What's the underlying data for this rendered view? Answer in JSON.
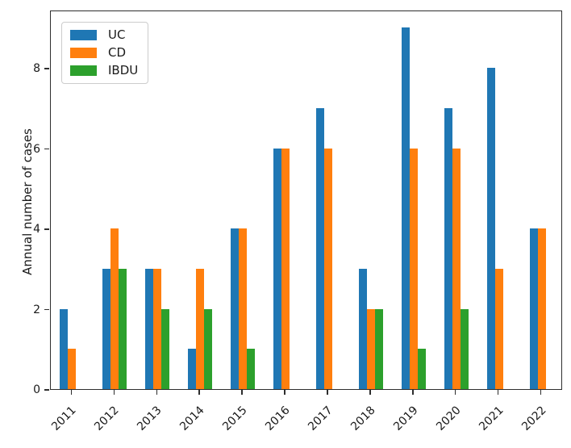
{
  "chart_data": {
    "type": "bar",
    "title": "",
    "xlabel": "",
    "ylabel": "Annual number of cases",
    "categories": [
      "2011",
      "2012",
      "2013",
      "2014",
      "2015",
      "2016",
      "2017",
      "2018",
      "2019",
      "2020",
      "2021",
      "2022"
    ],
    "series": [
      {
        "name": "UC",
        "color": "#1f77b4",
        "values": [
          2,
          3,
          3,
          1,
          4,
          6,
          7,
          3,
          9,
          7,
          8,
          4
        ]
      },
      {
        "name": "CD",
        "color": "#ff7f0e",
        "values": [
          1,
          4,
          3,
          3,
          4,
          6,
          6,
          2,
          6,
          6,
          3,
          4
        ]
      },
      {
        "name": "IBDU",
        "color": "#2ca02c",
        "values": [
          0,
          3,
          2,
          2,
          1,
          0,
          0,
          2,
          1,
          2,
          0,
          0
        ]
      }
    ],
    "yticks": [
      0,
      2,
      4,
      6,
      8
    ],
    "ylim": [
      0,
      9.45
    ],
    "grid": false,
    "legend_position": "upper left",
    "xtick_rotation_deg": 45
  },
  "style": {
    "axis_color": "#2e2e2e",
    "text_color": "#1a1a1a",
    "background": "#ffffff"
  }
}
